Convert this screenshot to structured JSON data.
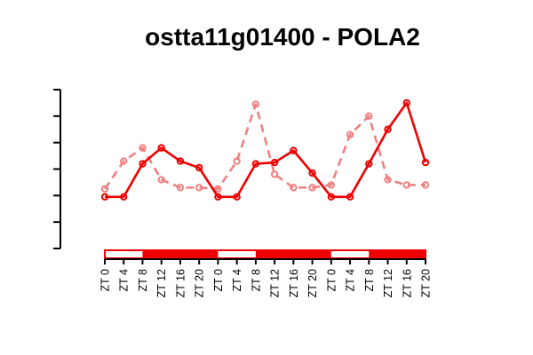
{
  "chart_data": {
    "type": "line",
    "title": "ostta11g01400 - POLA2",
    "xlabel": "",
    "ylabel": "",
    "categories": [
      "ZT 0",
      "ZT 4",
      "ZT 8",
      "ZT 12",
      "ZT 16",
      "ZT 20",
      "ZT 0",
      "ZT 4",
      "ZT 8",
      "ZT 12",
      "ZT 16",
      "ZT 20",
      "ZT 0",
      "ZT 4",
      "ZT 8",
      "ZT 12",
      "ZT 16",
      "ZT 20"
    ],
    "ylim": [
      0,
      6
    ],
    "yticks": [
      0,
      1,
      2,
      3,
      4,
      5,
      6
    ],
    "y_tick_labels_shown": false,
    "grid": false,
    "legend": "none",
    "series": [
      {
        "style": "solid",
        "color": "#ee0000",
        "values": [
          1.95,
          1.95,
          3.2,
          3.8,
          3.3,
          3.05,
          1.95,
          1.95,
          3.2,
          3.25,
          3.7,
          2.85,
          1.95,
          1.95,
          3.2,
          4.5,
          5.5,
          3.25
        ]
      },
      {
        "style": "dashed",
        "color": "#f08080",
        "values": [
          2.25,
          3.3,
          3.8,
          2.6,
          2.3,
          2.3,
          2.25,
          3.3,
          5.45,
          2.8,
          2.3,
          2.3,
          2.4,
          4.3,
          5.0,
          2.6,
          2.4,
          2.4
        ]
      }
    ],
    "light_dark_bar": {
      "segments": [
        {
          "state": "light",
          "from": 0,
          "to": 2
        },
        {
          "state": "dark",
          "from": 2,
          "to": 6
        },
        {
          "state": "light",
          "from": 6,
          "to": 8
        },
        {
          "state": "dark",
          "from": 8,
          "to": 12
        },
        {
          "state": "light",
          "from": 12,
          "to": 14
        },
        {
          "state": "dark",
          "from": 14,
          "to": 17
        }
      ],
      "light_color": "#ffffff",
      "dark_color": "#ee0000",
      "border_color": "#ee0000"
    }
  }
}
